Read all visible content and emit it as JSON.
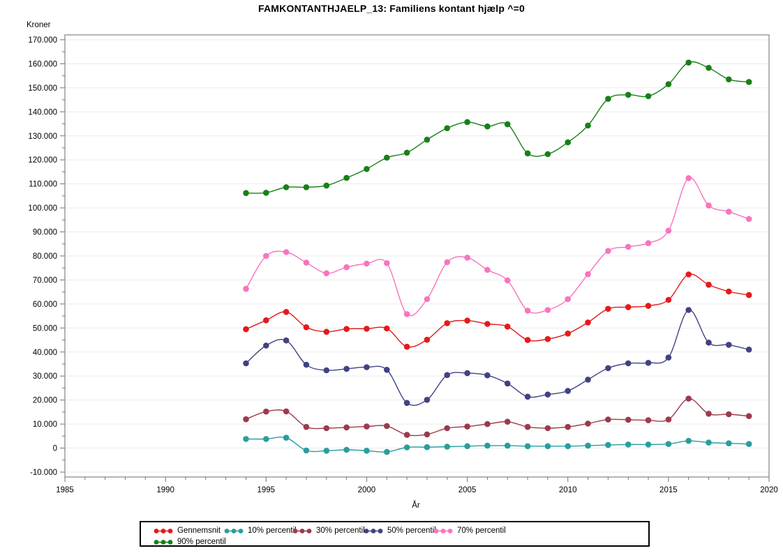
{
  "title": "FAMKONTANTHJAELP_13: Familiens kontant hjælp ^=0",
  "chart_data": {
    "type": "line",
    "title": "FAMKONTANTHJAELP_13: Familiens kontant hjælp ^=0",
    "ylabel": "Kroner",
    "xlabel": "År",
    "xlim": [
      1985,
      2020
    ],
    "ylim": [
      -10000,
      170000
    ],
    "x_major_step": 5,
    "x_minor_step": 1,
    "y_major_step": 10000,
    "y_minor_step": 5000,
    "grid": "horizontal-major",
    "legend_position": "bottom",
    "x": [
      1994,
      1995,
      1996,
      1997,
      1998,
      1999,
      2000,
      2001,
      2002,
      2003,
      2004,
      2005,
      2006,
      2007,
      2008,
      2009,
      2010,
      2011,
      2012,
      2013,
      2014,
      2015,
      2016,
      2017,
      2018,
      2019
    ],
    "series": [
      {
        "name": "Gennemsnit",
        "color": "#e41a1c",
        "values": [
          49500,
          53200,
          56700,
          50300,
          48400,
          49600,
          49700,
          49800,
          42200,
          45100,
          52000,
          53100,
          51700,
          50600,
          45000,
          45400,
          47700,
          52300,
          58000,
          58700,
          59200,
          61700,
          72300,
          68000,
          65200,
          63700
        ]
      },
      {
        "name": "10% percentil",
        "color": "#2a9d9d",
        "values": [
          3800,
          3800,
          4300,
          -1000,
          -1100,
          -700,
          -1100,
          -1600,
          300,
          400,
          600,
          800,
          1000,
          1000,
          800,
          800,
          800,
          1000,
          1300,
          1500,
          1500,
          1700,
          3000,
          2300,
          2000,
          1700
        ]
      },
      {
        "name": "30% percentil",
        "color": "#9c3a4c",
        "values": [
          12000,
          15200,
          15300,
          8800,
          8300,
          8600,
          9000,
          9200,
          5500,
          5700,
          8300,
          9000,
          10000,
          11000,
          8800,
          8300,
          8800,
          10200,
          11900,
          11800,
          11600,
          11900,
          20600,
          14300,
          14100,
          13300
        ]
      },
      {
        "name": "50% percentil",
        "color": "#414184",
        "values": [
          35300,
          42700,
          44800,
          34700,
          32400,
          33000,
          33700,
          32600,
          18800,
          20100,
          30400,
          31200,
          30300,
          26900,
          21400,
          22300,
          23800,
          28500,
          33300,
          35300,
          35500,
          37700,
          57500,
          43900,
          43000,
          41000
        ]
      },
      {
        "name": "70% percentil",
        "color": "#f874be",
        "values": [
          66300,
          80000,
          81600,
          77200,
          72800,
          75300,
          76800,
          77000,
          55800,
          62000,
          77400,
          79300,
          74200,
          69800,
          57200,
          57500,
          62000,
          72400,
          82100,
          83800,
          85300,
          90500,
          112400,
          101000,
          98400,
          95400
        ]
      },
      {
        "name": "90% percentil",
        "color": "#178017",
        "values": [
          106200,
          106300,
          108600,
          108600,
          109300,
          112500,
          116200,
          120900,
          123000,
          128400,
          133200,
          135700,
          133900,
          134800,
          122700,
          122400,
          127300,
          134300,
          145400,
          147100,
          146500,
          151500,
          160500,
          158300,
          153500,
          152400
        ]
      }
    ],
    "y_tick_labels": [
      "-10.000",
      "0",
      "10.000",
      "20.000",
      "30.000",
      "40.000",
      "50.000",
      "60.000",
      "70.000",
      "80.000",
      "90.000",
      "100.000",
      "110.000",
      "120.000",
      "130.000",
      "140.000",
      "150.000",
      "160.000",
      "170.000"
    ],
    "x_tick_labels": [
      "1985",
      "1990",
      "1995",
      "2000",
      "2005",
      "2010",
      "2015",
      "2020"
    ]
  },
  "style_colors": {
    "frame": "#848484",
    "tick": "#707070",
    "gridline": "#ebebeb",
    "text": "#000000",
    "legend_border": "#000000"
  }
}
